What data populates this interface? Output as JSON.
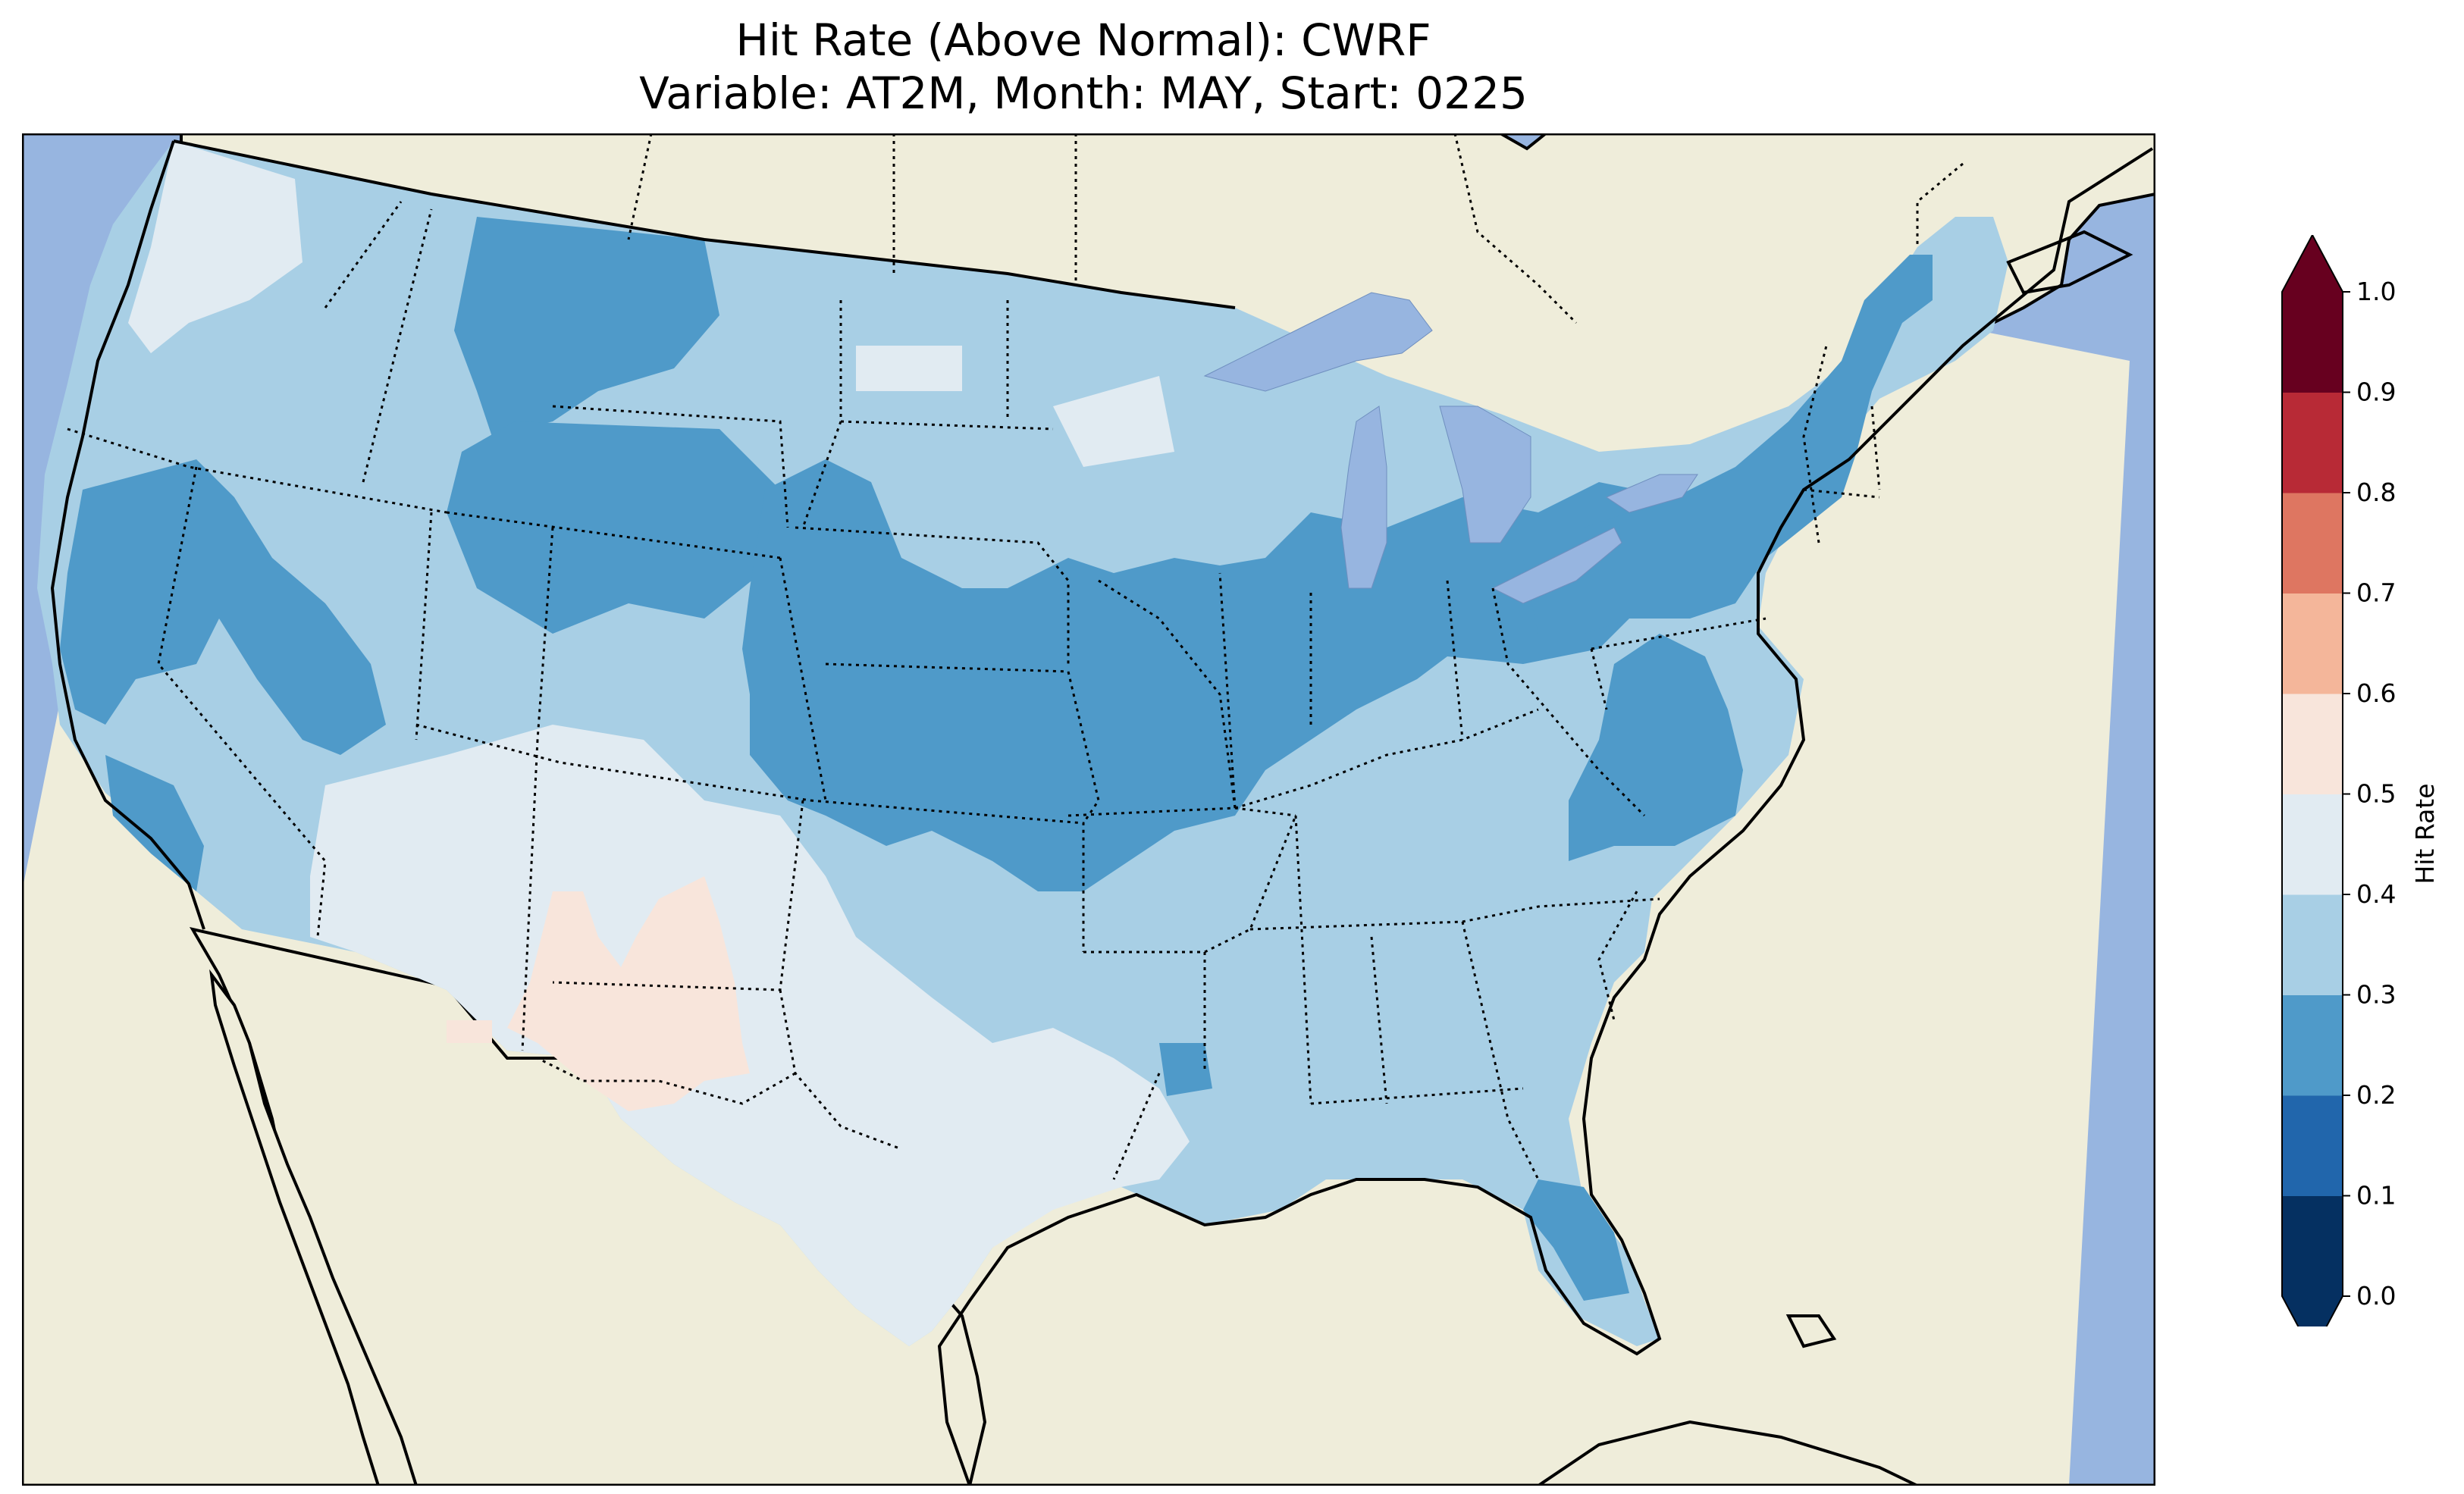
{
  "title": {
    "line1": "Hit Rate (Above Normal): CWRF",
    "line2": "Variable: AT2M, Month: MAY, Start: 0225"
  },
  "colors": {
    "ocean": "#97b5e0",
    "land": "#efedda",
    "lake": "#97b5e0"
  },
  "colorbar": {
    "label": "Hit Rate",
    "ticks": [
      "0.0",
      "0.1",
      "0.2",
      "0.3",
      "0.4",
      "0.5",
      "0.6",
      "0.7",
      "0.8",
      "0.9",
      "1.0"
    ],
    "bins": [
      {
        "min": 0.0,
        "max": 0.1,
        "color": "#053061"
      },
      {
        "min": 0.1,
        "max": 0.2,
        "color": "#2166ac"
      },
      {
        "min": 0.2,
        "max": 0.3,
        "color": "#4f9ac9"
      },
      {
        "min": 0.3,
        "max": 0.4,
        "color": "#a8cfe5"
      },
      {
        "min": 0.4,
        "max": 0.5,
        "color": "#e1ebf2"
      },
      {
        "min": 0.5,
        "max": 0.6,
        "color": "#f8e5db"
      },
      {
        "min": 0.6,
        "max": 0.7,
        "color": "#f4b69a"
      },
      {
        "min": 0.7,
        "max": 0.8,
        "color": "#de7661"
      },
      {
        "min": 0.8,
        "max": 0.9,
        "color": "#b82a36"
      },
      {
        "min": 0.9,
        "max": 1.0,
        "color": "#67001f"
      }
    ],
    "extend": "both"
  },
  "regions": [
    {
      "name": "pacific-northwest",
      "bin": 0.4
    },
    {
      "name": "northern-rockies",
      "bin": 0.2
    },
    {
      "name": "california-nevada",
      "bin": 0.2
    },
    {
      "name": "central-plains",
      "bin": 0.2
    },
    {
      "name": "midwest",
      "bin": 0.2
    },
    {
      "name": "northeast",
      "bin": 0.2
    },
    {
      "name": "southwest",
      "bin": 0.4
    },
    {
      "name": "texas",
      "bin": 0.4
    },
    {
      "name": "new-mexico-south",
      "bin": 0.5
    },
    {
      "name": "southeast",
      "bin": 0.3
    },
    {
      "name": "florida",
      "bin": 0.2
    }
  ]
}
